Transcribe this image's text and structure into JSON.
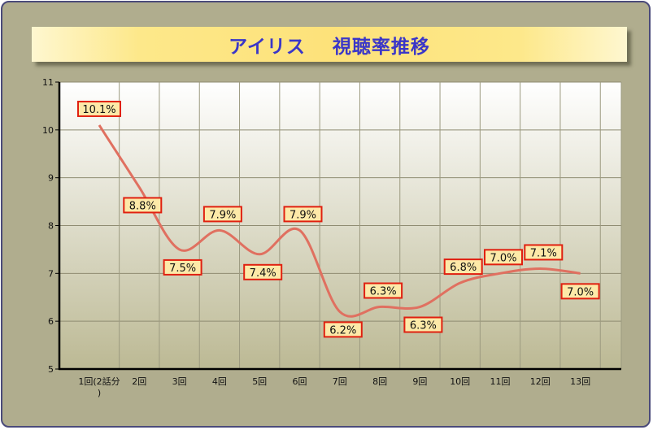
{
  "title": "アイリス　 視聴率推移",
  "chart_data": {
    "type": "line",
    "title": "アイリス　 視聴率推移",
    "xlabel": "",
    "ylabel": "",
    "ylim": [
      5,
      11
    ],
    "yticks": [
      5,
      6,
      7,
      8,
      9,
      10,
      11
    ],
    "grid": true,
    "smooth": true,
    "line_color": "#e07060",
    "label_border_color": "#e02010",
    "label_fill_color": "#fde9a8",
    "categories": [
      "1回(2話分)",
      "2回",
      "3回",
      "4回",
      "5回",
      "6回",
      "7回",
      "8回",
      "9回",
      "10回",
      "11回",
      "12回",
      "13回"
    ],
    "values": [
      10.1,
      8.8,
      7.5,
      7.9,
      7.4,
      7.9,
      6.2,
      6.3,
      6.3,
      6.8,
      7.0,
      7.1,
      7.0
    ],
    "data_labels": [
      "10.1%",
      "8.8%",
      "7.5%",
      "7.9%",
      "7.4%",
      "7.9%",
      "6.2%",
      "6.3%",
      "6.3%",
      "6.8%",
      "7.0%",
      "7.1%",
      "7.0%"
    ]
  }
}
